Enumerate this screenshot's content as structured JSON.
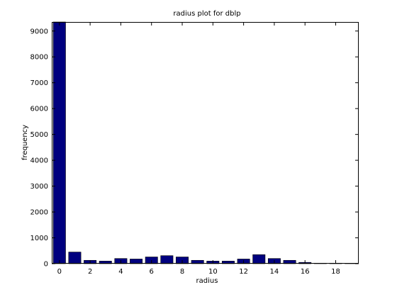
{
  "chart_data": {
    "type": "bar",
    "title": "radius plot for dblp",
    "xlabel": "radius",
    "ylabel": "frequency",
    "x": [
      0,
      1,
      2,
      3,
      4,
      5,
      6,
      7,
      8,
      9,
      10,
      11,
      12,
      13,
      14,
      15,
      16,
      17,
      18,
      19
    ],
    "values": [
      9350,
      450,
      130,
      100,
      200,
      180,
      260,
      310,
      260,
      130,
      100,
      100,
      180,
      350,
      200,
      130,
      50,
      20,
      20,
      10
    ],
    "xlim": [
      -0.5,
      19.5
    ],
    "ylim": [
      0,
      9350
    ],
    "xticks": [
      0,
      2,
      4,
      6,
      8,
      10,
      12,
      14,
      16,
      18
    ],
    "yticks": [
      0,
      1000,
      2000,
      3000,
      4000,
      5000,
      6000,
      7000,
      8000,
      9000
    ],
    "bar_color": "#00007f",
    "grid": false,
    "legend": "none"
  }
}
